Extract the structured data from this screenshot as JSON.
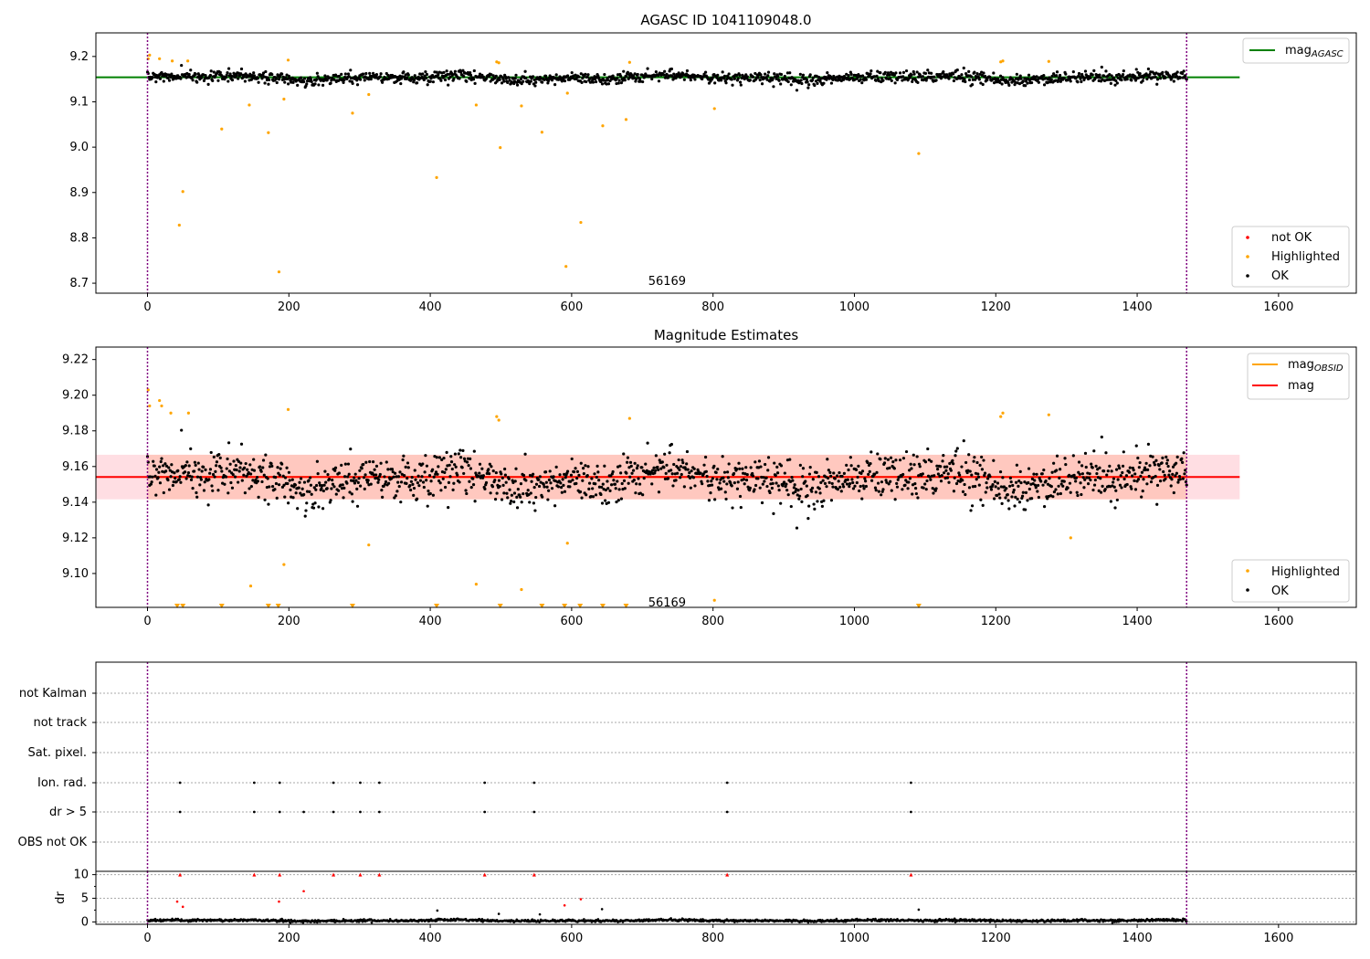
{
  "figure": {
    "background": "#ffffff"
  },
  "colors": {
    "ok": "#000000",
    "highlighted": "#ffa500",
    "not_ok": "#ff0000",
    "mag_agasc_line": "#008000",
    "mag_obsid_line": "#ffa500",
    "mag_line": "#ff0000",
    "band_fill": "#ffb6c1",
    "band_inner_fill": "#ffa07a",
    "obs_boundary": "#800080"
  },
  "chart_data": [
    {
      "type": "scatter",
      "title": "AGASC ID 1041109048.0",
      "xlim": [
        -73,
        1710
      ],
      "ylim": [
        8.678,
        9.252
      ],
      "xticks": [
        0,
        200,
        400,
        600,
        800,
        1000,
        1200,
        1400,
        1600
      ],
      "yticks": [
        8.7,
        8.8,
        8.9,
        9.0,
        9.1,
        9.2
      ],
      "ytick_labels": [
        "8.7",
        "8.8",
        "8.9",
        "9.0",
        "9.1",
        "9.2"
      ],
      "annotation": {
        "text": "56169",
        "x": 735,
        "y": 8.7
      },
      "obsid_boundaries": [
        0,
        1470
      ],
      "lines": [
        {
          "name": "mag",
          "subscript": "AGASC",
          "color": "#008000",
          "y": 9.154,
          "x": [
            -73,
            1545
          ]
        }
      ],
      "series": [
        {
          "name": "not OK",
          "color": "#ff0000",
          "x": [],
          "y": []
        },
        {
          "name": "Highlighted",
          "color": "#ffa500",
          "x": [
            1,
            3,
            17,
            35,
            45,
            50,
            57,
            105,
            144,
            171,
            186,
            193,
            199,
            290,
            313,
            409,
            465,
            494,
            497,
            499,
            529,
            558,
            592,
            594,
            613,
            644,
            677,
            682,
            802,
            1091,
            1207,
            1210,
            1275
          ],
          "y": [
            9.195,
            9.203,
            9.195,
            9.19,
            8.828,
            8.902,
            9.19,
            9.04,
            9.093,
            9.032,
            8.725,
            9.106,
            9.192,
            9.075,
            9.116,
            8.933,
            9.093,
            9.188,
            9.186,
            8.999,
            9.091,
            9.033,
            8.737,
            9.119,
            8.834,
            9.047,
            9.061,
            9.187,
            9.085,
            8.986,
            9.188,
            9.19,
            9.189
          ]
        },
        {
          "name": "OK",
          "color": "#000000",
          "generator": {
            "n": 1470,
            "x_start": 0,
            "x_end": 1470,
            "base": 9.153,
            "seed": 20240,
            "noise": 0.007
          },
          "x": [],
          "y": []
        }
      ],
      "legend_upper": [
        {
          "label": "mag",
          "subscript": "AGASC",
          "kind": "line",
          "color": "#008000"
        }
      ],
      "legend_lower": [
        {
          "label": "not OK",
          "kind": "marker",
          "color": "#ff0000"
        },
        {
          "label": "Highlighted",
          "kind": "marker",
          "color": "#ffa500"
        },
        {
          "label": "OK",
          "kind": "marker",
          "color": "#000000"
        }
      ]
    },
    {
      "type": "scatter",
      "title": "Magnitude Estimates",
      "xlim": [
        -73,
        1710
      ],
      "ylim": [
        9.081,
        9.227
      ],
      "xticks": [
        0,
        200,
        400,
        600,
        800,
        1000,
        1200,
        1400,
        1600
      ],
      "yticks": [
        9.1,
        9.12,
        9.14,
        9.16,
        9.18,
        9.2,
        9.22
      ],
      "ytick_labels": [
        "9.10",
        "9.12",
        "9.14",
        "9.16",
        "9.18",
        "9.20",
        "9.22"
      ],
      "annotation": {
        "text": "56169",
        "x": 735,
        "y": 9.0855
      },
      "obsid_boundaries": [
        0,
        1470
      ],
      "band": {
        "x": [
          -73,
          1545
        ],
        "y": [
          9.1416,
          9.1666
        ],
        "color": "#ffb6c1"
      },
      "band_inner": {
        "x": [
          0,
          1470
        ],
        "y": [
          9.1416,
          9.1666
        ],
        "color": "#ffa07a"
      },
      "lines": [
        {
          "name": "mag",
          "subscript": "OBSID",
          "color": "#ffa500",
          "y": 9.1541,
          "x": [
            0,
            1470
          ]
        },
        {
          "name": "mag",
          "color": "#ff0000",
          "y": 9.1541,
          "x": [
            -73,
            1545
          ]
        }
      ],
      "series": [
        {
          "name": "Highlighted",
          "color": "#ffa500",
          "x": [
            1,
            3,
            17,
            20,
            33,
            58,
            146,
            193,
            199,
            313,
            465,
            494,
            497,
            529,
            594,
            682,
            802,
            1207,
            1210,
            1275,
            1306
          ],
          "y": [
            9.203,
            9.194,
            9.197,
            9.194,
            9.19,
            9.19,
            9.093,
            9.105,
            9.192,
            9.116,
            9.094,
            9.188,
            9.186,
            9.091,
            9.117,
            9.187,
            9.085,
            9.188,
            9.19,
            9.189,
            9.12
          ]
        },
        {
          "name": "Highlighted (clipped)",
          "color": "#ffa500",
          "x": [
            42,
            50,
            105,
            171,
            185,
            290,
            409,
            499,
            558,
            590,
            612,
            644,
            677,
            1091
          ],
          "y": [
            9.081,
            9.081,
            9.081,
            9.081,
            9.081,
            9.081,
            9.081,
            9.081,
            9.081,
            9.081,
            9.081,
            9.081,
            9.081,
            9.081
          ]
        },
        {
          "name": "OK",
          "color": "#000000",
          "generator": {
            "n": 1470,
            "x_start": 0,
            "x_end": 1470,
            "base": 9.153,
            "seed": 20240,
            "noise": 0.007
          },
          "x": [],
          "y": []
        }
      ],
      "legend_upper": [
        {
          "label": "mag",
          "subscript": "OBSID",
          "kind": "line",
          "color": "#ffa500"
        },
        {
          "label": "mag",
          "kind": "line",
          "color": "#ff0000"
        }
      ],
      "legend_lower": [
        {
          "label": "Highlighted",
          "kind": "marker",
          "color": "#ffa500"
        },
        {
          "label": "OK",
          "kind": "marker",
          "color": "#000000"
        }
      ]
    },
    {
      "type": "scatter",
      "title": "",
      "xlim": [
        -73,
        1710
      ],
      "obsid_boundaries": [
        0,
        1470
      ],
      "categories": [
        "not Kalman",
        "not track",
        "Sat. pixel.",
        "Ion. rad.",
        "dr > 5",
        "OBS not OK"
      ],
      "flags": {
        "not Kalman": [],
        "not track": [],
        "Sat. pixel.": [],
        "Ion. rad.": [
          46,
          151,
          187,
          263,
          301,
          328,
          477,
          547,
          820,
          1080
        ],
        "dr > 5": [
          46,
          151,
          187,
          221,
          263,
          301,
          328,
          477,
          547,
          820,
          1080
        ],
        "OBS not OK": []
      }
    },
    {
      "type": "scatter",
      "title": "",
      "ylabel": "dr",
      "xlim": [
        -73,
        1710
      ],
      "ylim": [
        -0.5,
        10.7
      ],
      "xticks": [
        0,
        200,
        400,
        600,
        800,
        1000,
        1200,
        1400,
        1600
      ],
      "yticks": [
        0,
        5,
        10
      ],
      "ytick_labels": [
        "0",
        "5",
        "10"
      ],
      "obsid_boundaries": [
        0,
        1470
      ],
      "series": [
        {
          "name": "dr (clipped, not OK)",
          "color": "#ff0000",
          "x": [
            46,
            151,
            187,
            263,
            301,
            328,
            477,
            547,
            820,
            1080
          ],
          "y": [
            10,
            10,
            10,
            10,
            10,
            10,
            10,
            10,
            10,
            10
          ]
        },
        {
          "name": "dr (not OK)",
          "color": "#ff0000",
          "x": [
            42,
            50,
            186,
            221,
            590,
            613
          ],
          "y": [
            4.3,
            3.2,
            4.3,
            6.5,
            3.5,
            4.8
          ]
        },
        {
          "name": "dr (OK, outliers)",
          "color": "#000000",
          "x": [
            410,
            497,
            555,
            643,
            1091
          ],
          "y": [
            2.4,
            1.7,
            1.6,
            2.7,
            2.6
          ]
        },
        {
          "name": "dr (OK)",
          "color": "#000000",
          "generator": {
            "n": 1470,
            "x_start": 0,
            "x_end": 1470,
            "base": 0.3,
            "seed": 777,
            "noise": 0.15
          },
          "x": [],
          "y": []
        }
      ]
    }
  ]
}
